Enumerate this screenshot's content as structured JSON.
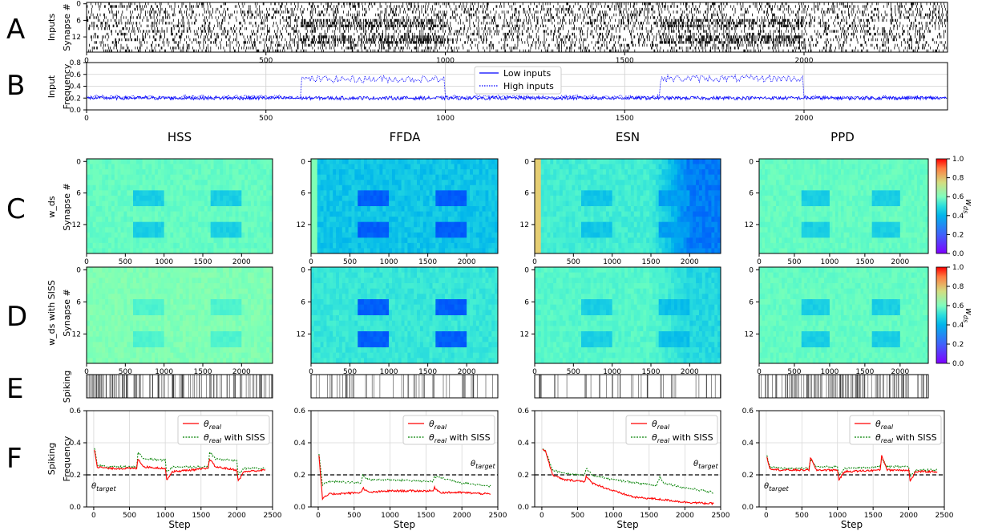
{
  "panel_letters": [
    "A",
    "B",
    "C",
    "D",
    "E",
    "F"
  ],
  "panel_ylabels": {
    "A": [
      "Inputs",
      "Synapse #"
    ],
    "B": [
      "Input",
      "Frequency"
    ],
    "C": [
      "w_ds",
      "Synapse #"
    ],
    "D": [
      "w_ds with SISS",
      "Synapse #"
    ],
    "E": [
      "Spiking"
    ],
    "F": [
      "Spiking",
      "Frequency"
    ]
  },
  "column_titles": [
    "HSS",
    "FFDA",
    "ESN",
    "PPD"
  ],
  "colorbar": {
    "label": "w_ds",
    "ticks": [
      "0.0",
      "0.2",
      "0.4",
      "0.6",
      "0.8",
      "1.0"
    ],
    "range": [
      0,
      1
    ],
    "colormap": "rainbow"
  },
  "chart_data": [
    {
      "id": "A",
      "type": "heatmap",
      "title": "",
      "ylabel": "Synapse #",
      "x_ticks": [
        0,
        500,
        1000,
        1500,
        2000
      ],
      "y_ticks": [
        0,
        6,
        12
      ],
      "xlim": [
        0,
        2400
      ],
      "n_synapses": 18,
      "description": "binary raster of input spikes; high-rate inputs on synapses 6-8 and 12-14 during steps 600-1000 and 1600-2000"
    },
    {
      "id": "B",
      "type": "line",
      "xlim": [
        0,
        2400
      ],
      "ylim": [
        0,
        0.8
      ],
      "y_ticks": [
        "0.0",
        "0.2",
        "0.4",
        "0.6",
        "0.8"
      ],
      "x_ticks": [
        0,
        500,
        1000,
        1500,
        2000
      ],
      "grid": true,
      "legend": {
        "placement": "upper-center",
        "entries": [
          "Low inputs",
          "High inputs"
        ]
      },
      "series": [
        {
          "name": "Low inputs",
          "style": "solid",
          "color": "#0000ff",
          "level": 0.2,
          "noise": 0.03
        },
        {
          "name": "High inputs",
          "style": "dotted",
          "color": "#0000ff",
          "segments": [
            {
              "x": [
                0,
                600
              ],
              "y": 0.22
            },
            {
              "x": [
                600,
                1000
              ],
              "y": 0.52
            },
            {
              "x": [
                1000,
                1600
              ],
              "y": 0.22
            },
            {
              "x": [
                1600,
                2000
              ],
              "y": 0.53
            },
            {
              "x": [
                2000,
                2400
              ],
              "y": 0.21
            }
          ]
        }
      ]
    },
    {
      "id": "C",
      "type": "heatmap",
      "subplots": [
        {
          "model": "HSS",
          "base": 0.45,
          "block": 0.3,
          "late_shift": 0.0,
          "early_high": 0
        },
        {
          "model": "FFDA",
          "base": 0.28,
          "block": 0.12,
          "late_shift": 0.0,
          "early_high": 0.5
        },
        {
          "model": "ESN",
          "base": 0.38,
          "block": 0.28,
          "late_shift": -0.22,
          "early_high": 0.7
        },
        {
          "model": "PPD",
          "base": 0.45,
          "block": 0.3,
          "late_shift": 0.0,
          "early_high": 0
        }
      ],
      "x_ticks": [
        0,
        500,
        1000,
        1500,
        2000
      ],
      "y_ticks": [
        0,
        6,
        12
      ]
    },
    {
      "id": "D",
      "type": "heatmap",
      "subplots": [
        {
          "model": "HSS",
          "base": 0.5,
          "block": 0.4,
          "late_shift": 0.0,
          "early_high": 0
        },
        {
          "model": "FFDA",
          "base": 0.36,
          "block": 0.12,
          "late_shift": 0.0,
          "early_high": 0
        },
        {
          "model": "ESN",
          "base": 0.42,
          "block": 0.3,
          "late_shift": -0.1,
          "early_high": 0
        },
        {
          "model": "PPD",
          "base": 0.45,
          "block": 0.3,
          "late_shift": 0.0,
          "early_high": 0
        }
      ],
      "x_ticks": [
        0,
        500,
        1000,
        1500,
        2000
      ],
      "y_ticks": [
        0,
        6,
        12
      ]
    },
    {
      "id": "E",
      "type": "raster",
      "subplots": [
        {
          "model": "HSS",
          "spike_rate": 0.22
        },
        {
          "model": "FFDA",
          "spike_rate": 0.08
        },
        {
          "model": "ESN",
          "spike_rate": 0.07
        },
        {
          "model": "PPD",
          "spike_rate": 0.22
        }
      ]
    },
    {
      "id": "F",
      "type": "line",
      "xlabel": "Step",
      "xlim": [
        -100,
        2500
      ],
      "ylim": [
        0,
        0.6
      ],
      "x_ticks": [
        0,
        500,
        1000,
        1500,
        2000,
        2500
      ],
      "y_ticks": [
        "0.0",
        "0.2",
        "0.4",
        "0.6"
      ],
      "target": 0.2,
      "target_label": "θ_target",
      "legend": {
        "placement": "top-right",
        "entries": [
          "θ_real",
          "θ_real with SISS"
        ]
      },
      "subplots": [
        {
          "model": "HSS",
          "real": [
            [
              10,
              0.36
            ],
            [
              50,
              0.25
            ],
            [
              200,
              0.24
            ],
            [
              400,
              0.24
            ],
            [
              600,
              0.24
            ],
            [
              620,
              0.3
            ],
            [
              700,
              0.25
            ],
            [
              1000,
              0.24
            ],
            [
              1020,
              0.17
            ],
            [
              1100,
              0.22
            ],
            [
              1600,
              0.24
            ],
            [
              1620,
              0.3
            ],
            [
              1700,
              0.25
            ],
            [
              2000,
              0.23
            ],
            [
              2020,
              0.16
            ],
            [
              2100,
              0.22
            ],
            [
              2400,
              0.23
            ]
          ],
          "siss": [
            [
              10,
              0.37
            ],
            [
              50,
              0.26
            ],
            [
              200,
              0.25
            ],
            [
              600,
              0.25
            ],
            [
              620,
              0.34
            ],
            [
              700,
              0.3
            ],
            [
              1000,
              0.29
            ],
            [
              1020,
              0.22
            ],
            [
              1100,
              0.25
            ],
            [
              1600,
              0.25
            ],
            [
              1620,
              0.34
            ],
            [
              1700,
              0.3
            ],
            [
              2000,
              0.29
            ],
            [
              2020,
              0.2
            ],
            [
              2100,
              0.24
            ],
            [
              2400,
              0.24
            ]
          ]
        },
        {
          "model": "FFDA",
          "real": [
            [
              10,
              0.32
            ],
            [
              60,
              0.05
            ],
            [
              150,
              0.08
            ],
            [
              600,
              0.09
            ],
            [
              620,
              0.12
            ],
            [
              700,
              0.09
            ],
            [
              1000,
              0.1
            ],
            [
              1600,
              0.1
            ],
            [
              1620,
              0.12
            ],
            [
              1700,
              0.09
            ],
            [
              2000,
              0.09
            ],
            [
              2400,
              0.08
            ]
          ],
          "siss": [
            [
              10,
              0.33
            ],
            [
              60,
              0.14
            ],
            [
              150,
              0.16
            ],
            [
              600,
              0.15
            ],
            [
              620,
              0.2
            ],
            [
              700,
              0.17
            ],
            [
              1000,
              0.17
            ],
            [
              1500,
              0.16
            ],
            [
              1600,
              0.16
            ],
            [
              1620,
              0.19
            ],
            [
              2000,
              0.15
            ],
            [
              2400,
              0.13
            ]
          ]
        },
        {
          "model": "ESN",
          "real": [
            [
              10,
              0.36
            ],
            [
              50,
              0.35
            ],
            [
              150,
              0.2
            ],
            [
              300,
              0.17
            ],
            [
              600,
              0.16
            ],
            [
              620,
              0.19
            ],
            [
              700,
              0.15
            ],
            [
              1000,
              0.1
            ],
            [
              1300,
              0.06
            ],
            [
              1600,
              0.05
            ],
            [
              2000,
              0.03
            ],
            [
              2400,
              0.02
            ]
          ],
          "siss": [
            [
              10,
              0.36
            ],
            [
              50,
              0.35
            ],
            [
              150,
              0.23
            ],
            [
              300,
              0.21
            ],
            [
              600,
              0.2
            ],
            [
              620,
              0.24
            ],
            [
              700,
              0.2
            ],
            [
              1000,
              0.17
            ],
            [
              1500,
              0.14
            ],
            [
              1600,
              0.13
            ],
            [
              1650,
              0.19
            ],
            [
              1700,
              0.15
            ],
            [
              2000,
              0.12
            ],
            [
              2400,
              0.09
            ]
          ]
        },
        {
          "model": "PPD",
          "real": [
            [
              10,
              0.31
            ],
            [
              50,
              0.24
            ],
            [
              200,
              0.23
            ],
            [
              600,
              0.23
            ],
            [
              620,
              0.31
            ],
            [
              700,
              0.23
            ],
            [
              1000,
              0.23
            ],
            [
              1020,
              0.17
            ],
            [
              1100,
              0.22
            ],
            [
              1600,
              0.23
            ],
            [
              1620,
              0.32
            ],
            [
              1700,
              0.23
            ],
            [
              2000,
              0.23
            ],
            [
              2020,
              0.16
            ],
            [
              2100,
              0.22
            ],
            [
              2400,
              0.22
            ]
          ],
          "siss": [
            [
              10,
              0.32
            ],
            [
              50,
              0.25
            ],
            [
              200,
              0.24
            ],
            [
              600,
              0.24
            ],
            [
              620,
              0.3
            ],
            [
              700,
              0.25
            ],
            [
              1000,
              0.25
            ],
            [
              1020,
              0.2
            ],
            [
              1100,
              0.24
            ],
            [
              1600,
              0.25
            ],
            [
              1620,
              0.3
            ],
            [
              1700,
              0.25
            ],
            [
              2000,
              0.25
            ],
            [
              2020,
              0.19
            ],
            [
              2100,
              0.23
            ],
            [
              2400,
              0.23
            ]
          ]
        }
      ]
    }
  ]
}
